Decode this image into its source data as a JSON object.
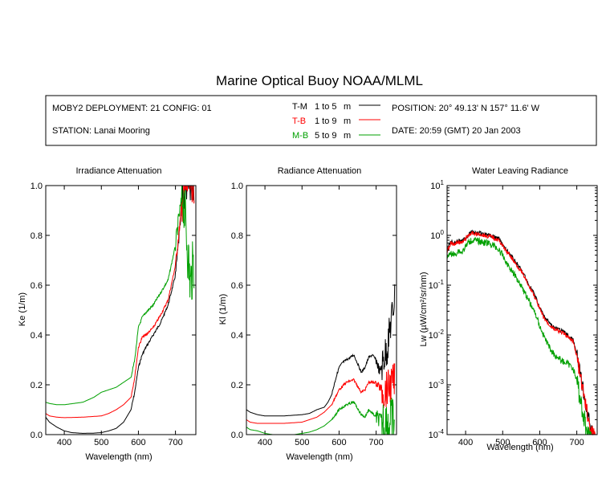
{
  "figure": {
    "title": "Marine Optical Buoy NOAA/MLML"
  },
  "info_box": {
    "deployment": "MOBY2 DEPLOYMENT: 21 CONFIG: 01",
    "station": "STATION: Lanai Mooring",
    "position": "POSITION: 20° 49.13' N   157° 11.6' W",
    "date": "DATE: 20:59 (GMT) 20 Jan 2003",
    "legend": [
      {
        "code": "T-M",
        "range": "1 to 5",
        "unit": "m",
        "color": "#000000"
      },
      {
        "code": "T-B",
        "range": "1 to 9",
        "unit": "m",
        "color": "#ff0000"
      },
      {
        "code": "M-B",
        "range": "5 to 9",
        "unit": "m",
        "color": "#00a000"
      }
    ]
  },
  "chart_data": [
    {
      "type": "line",
      "title": "Irradiance Attenuation",
      "xlabel": "Wavelength (nm)",
      "ylabel": "Ke  (1/m)",
      "xlim": [
        350,
        755
      ],
      "ylim": [
        0,
        1.0
      ],
      "xticks": [
        "400",
        "500",
        "600",
        "700"
      ],
      "xtick_values": [
        400,
        500,
        600,
        700
      ],
      "yticks": [
        "0.0",
        "0.2",
        "0.4",
        "0.6",
        "0.8",
        "1.0"
      ],
      "ytick_values": [
        0,
        0.2,
        0.4,
        0.6,
        0.8,
        1.0
      ],
      "noise_start": 700,
      "series": [
        {
          "name": "T-M",
          "color": "#000000",
          "x": [
            350,
            360,
            380,
            400,
            420,
            450,
            480,
            500,
            520,
            540,
            560,
            580,
            590,
            600,
            610,
            620,
            640,
            660,
            680,
            700,
            710,
            720,
            730,
            740,
            750
          ],
          "y": [
            0.07,
            0.05,
            0.03,
            0.015,
            0.008,
            0.005,
            0.006,
            0.008,
            0.015,
            0.025,
            0.05,
            0.1,
            0.17,
            0.27,
            0.32,
            0.35,
            0.4,
            0.45,
            0.52,
            0.64,
            0.8,
            0.95,
            1.0,
            1.0,
            1.0
          ]
        },
        {
          "name": "T-B",
          "color": "#ff0000",
          "x": [
            350,
            360,
            380,
            400,
            450,
            500,
            520,
            540,
            560,
            580,
            590,
            600,
            610,
            620,
            640,
            660,
            680,
            700,
            710,
            720,
            730,
            740,
            750
          ],
          "y": [
            0.085,
            0.075,
            0.07,
            0.068,
            0.07,
            0.075,
            0.085,
            0.1,
            0.12,
            0.15,
            0.23,
            0.35,
            0.39,
            0.4,
            0.43,
            0.48,
            0.54,
            0.68,
            0.82,
            0.95,
            1.0,
            1.0,
            1.0
          ]
        },
        {
          "name": "M-B",
          "color": "#00a000",
          "x": [
            350,
            360,
            380,
            400,
            450,
            480,
            500,
            520,
            540,
            560,
            580,
            590,
            600,
            610,
            620,
            640,
            660,
            680,
            700,
            710,
            720,
            730,
            740,
            750
          ],
          "y": [
            0.13,
            0.125,
            0.12,
            0.12,
            0.13,
            0.15,
            0.17,
            0.18,
            0.19,
            0.21,
            0.23,
            0.3,
            0.43,
            0.47,
            0.49,
            0.52,
            0.57,
            0.62,
            0.76,
            0.88,
            0.97,
            0.8,
            0.6,
            0.7
          ]
        }
      ]
    },
    {
      "type": "line",
      "title": "Radiance Attenuation",
      "xlabel": "Wavelength (nm)",
      "ylabel": "Kl  (1/m)",
      "xlim": [
        350,
        755
      ],
      "ylim": [
        0,
        1.0
      ],
      "xticks": [
        "400",
        "500",
        "600",
        "700"
      ],
      "xtick_values": [
        400,
        500,
        600,
        700
      ],
      "yticks": [
        "0.0",
        "0.2",
        "0.4",
        "0.6",
        "0.8",
        "1.0"
      ],
      "ytick_values": [
        0,
        0.2,
        0.4,
        0.6,
        0.8,
        1.0
      ],
      "noise_start": 700,
      "series": [
        {
          "name": "T-M",
          "color": "#000000",
          "x": [
            350,
            360,
            380,
            400,
            450,
            500,
            520,
            540,
            560,
            570,
            580,
            590,
            600,
            610,
            620,
            630,
            640,
            660,
            670,
            680,
            690,
            700,
            710,
            720,
            730,
            740,
            750
          ],
          "y": [
            0.1,
            0.09,
            0.08,
            0.075,
            0.075,
            0.08,
            0.085,
            0.1,
            0.11,
            0.13,
            0.16,
            0.22,
            0.27,
            0.29,
            0.3,
            0.31,
            0.32,
            0.25,
            0.27,
            0.31,
            0.32,
            0.3,
            0.25,
            0.3,
            0.35,
            0.45,
            0.55
          ]
        },
        {
          "name": "T-B",
          "color": "#ff0000",
          "x": [
            350,
            360,
            380,
            400,
            450,
            500,
            540,
            560,
            580,
            600,
            620,
            640,
            660,
            670,
            680,
            700,
            720,
            740,
            750
          ],
          "y": [
            0.06,
            0.05,
            0.045,
            0.045,
            0.045,
            0.05,
            0.07,
            0.09,
            0.12,
            0.18,
            0.21,
            0.22,
            0.17,
            0.18,
            0.21,
            0.21,
            0.17,
            0.2,
            0.22
          ]
        },
        {
          "name": "M-B",
          "color": "#00a000",
          "x": [
            350,
            360,
            380,
            400,
            420,
            450,
            480,
            500,
            520,
            540,
            560,
            580,
            600,
            620,
            640,
            660,
            670,
            680,
            700,
            720,
            740,
            750
          ],
          "y": [
            0.03,
            0.02,
            0.015,
            0.005,
            0.0,
            0.0,
            0.0,
            0.005,
            0.01,
            0.02,
            0.035,
            0.06,
            0.1,
            0.12,
            0.13,
            0.08,
            0.07,
            0.1,
            0.07,
            0.05,
            0.04,
            0.06
          ]
        }
      ]
    },
    {
      "type": "line",
      "title": "Water Leaving Radiance",
      "xlabel": "Wavelength (nm)",
      "ylabel": "Lw  (µW/cm²/sr/nm)",
      "yscale": "log",
      "xlim": [
        350,
        755
      ],
      "ylim": [
        0.0001,
        10
      ],
      "xticks": [
        "400",
        "500",
        "600",
        "700"
      ],
      "xtick_values": [
        400,
        500,
        600,
        700
      ],
      "ytick_values": [
        0.0001,
        0.001,
        0.01,
        0.1,
        1,
        10
      ],
      "yticks": [
        {
          "base": "10",
          "exp": "-4"
        },
        {
          "base": "10",
          "exp": "-3"
        },
        {
          "base": "10",
          "exp": "-2"
        },
        {
          "base": "10",
          "exp": "-1"
        },
        {
          "base": "10",
          "exp": "0"
        },
        {
          "base": "10",
          "exp": "1"
        }
      ],
      "noise_start": 360,
      "series": [
        {
          "name": "T-M",
          "color": "#000000",
          "x": [
            350,
            360,
            370,
            380,
            390,
            400,
            410,
            420,
            430,
            440,
            450,
            460,
            470,
            480,
            490,
            500,
            510,
            520,
            530,
            540,
            550,
            560,
            570,
            580,
            590,
            600,
            610,
            620,
            630,
            640,
            650,
            660,
            670,
            680,
            690,
            700,
            710,
            720,
            730,
            740,
            750
          ],
          "y": [
            0.5,
            0.75,
            0.7,
            0.8,
            0.75,
            0.9,
            1.1,
            1.15,
            1.1,
            1.1,
            1.05,
            1.0,
            1.0,
            0.9,
            0.85,
            0.65,
            0.5,
            0.42,
            0.32,
            0.26,
            0.2,
            0.15,
            0.1,
            0.08,
            0.055,
            0.035,
            0.025,
            0.02,
            0.016,
            0.014,
            0.013,
            0.012,
            0.011,
            0.009,
            0.008,
            0.004,
            0.0015,
            0.0006,
            0.00025,
            0.00012,
            0.0001
          ]
        },
        {
          "name": "T-B",
          "color": "#ff0000",
          "x": [
            350,
            360,
            370,
            380,
            390,
            400,
            410,
            420,
            430,
            440,
            450,
            460,
            470,
            480,
            490,
            500,
            510,
            520,
            530,
            540,
            550,
            560,
            570,
            580,
            590,
            600,
            610,
            620,
            630,
            640,
            650,
            660,
            670,
            680,
            690,
            700,
            710,
            720,
            730,
            740,
            750
          ],
          "y": [
            0.45,
            0.7,
            0.65,
            0.75,
            0.7,
            0.85,
            1.05,
            1.1,
            1.05,
            1.05,
            1.0,
            0.95,
            0.95,
            0.85,
            0.8,
            0.62,
            0.47,
            0.4,
            0.3,
            0.24,
            0.19,
            0.14,
            0.095,
            0.075,
            0.05,
            0.033,
            0.023,
            0.018,
            0.015,
            0.013,
            0.012,
            0.011,
            0.01,
            0.0085,
            0.0075,
            0.0038,
            0.0014,
            0.00055,
            0.00023,
            0.00011,
            0.0001
          ]
        },
        {
          "name": "M-B",
          "color": "#00a000",
          "x": [
            350,
            360,
            370,
            380,
            390,
            400,
            410,
            420,
            430,
            440,
            450,
            460,
            470,
            480,
            490,
            500,
            510,
            520,
            530,
            540,
            550,
            560,
            570,
            580,
            590,
            600,
            610,
            620,
            630,
            640,
            650,
            660,
            670,
            680,
            690,
            700,
            710,
            720,
            730,
            740
          ],
          "y": [
            0.35,
            0.45,
            0.4,
            0.5,
            0.45,
            0.6,
            0.75,
            0.8,
            0.78,
            0.75,
            0.72,
            0.7,
            0.65,
            0.6,
            0.5,
            0.4,
            0.28,
            0.22,
            0.17,
            0.13,
            0.1,
            0.07,
            0.05,
            0.035,
            0.025,
            0.015,
            0.01,
            0.007,
            0.005,
            0.004,
            0.0035,
            0.003,
            0.0028,
            0.0025,
            0.0022,
            0.0012,
            0.0005,
            0.0002,
            0.0001,
            0.0001
          ]
        }
      ]
    }
  ]
}
